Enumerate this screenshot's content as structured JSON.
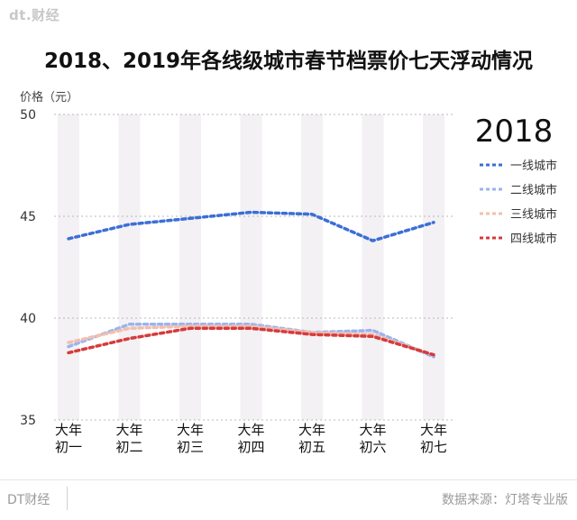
{
  "brand_watermark": "dt.财经",
  "footer": {
    "left": "DT财经",
    "right": "数据来源：灯塔专业版"
  },
  "chart_data": {
    "type": "line",
    "title": "2018、2019年各线级城市春节档票价七天浮动情况",
    "ylabel": "价格（元）",
    "xlabel": "",
    "year_label": "2018",
    "ylim": [
      35,
      50
    ],
    "yticks": [
      35,
      40,
      45,
      50
    ],
    "grid": true,
    "legend_position": "right",
    "categories": [
      [
        "大年",
        "初一"
      ],
      [
        "大年",
        "初二"
      ],
      [
        "大年",
        "初三"
      ],
      [
        "大年",
        "初四"
      ],
      [
        "大年",
        "初五"
      ],
      [
        "大年",
        "初六"
      ],
      [
        "大年",
        "初七"
      ]
    ],
    "series": [
      {
        "name": "一线城市",
        "color": "#3b6fd6",
        "values": [
          43.9,
          44.6,
          44.9,
          45.2,
          45.1,
          43.8,
          44.7
        ]
      },
      {
        "name": "二线城市",
        "color": "#9bb3ef",
        "values": [
          38.6,
          39.7,
          39.7,
          39.7,
          39.3,
          39.4,
          38.1
        ]
      },
      {
        "name": "三线城市",
        "color": "#f2bfae",
        "values": [
          38.8,
          39.5,
          39.6,
          39.6,
          39.3,
          39.2,
          38.2
        ]
      },
      {
        "name": "四线城市",
        "color": "#d63b3b",
        "values": [
          38.3,
          39.0,
          39.5,
          39.5,
          39.2,
          39.1,
          38.2
        ]
      }
    ]
  }
}
